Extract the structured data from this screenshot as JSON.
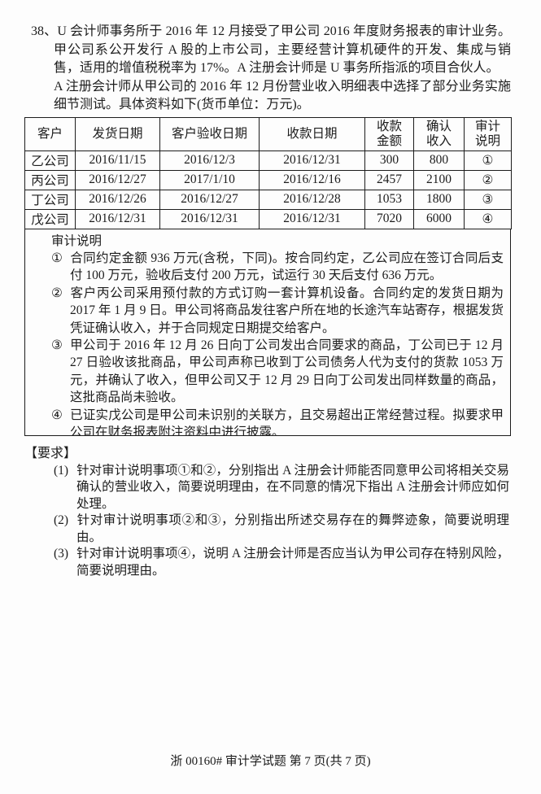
{
  "colors": {
    "ink": "#1c1c1c",
    "background": "#fdfdfd",
    "border": "#1c1c1c"
  },
  "question": {
    "number": "38、",
    "intro": "U 会计师事务所于 2016 年 12 月接受了甲公司 2016 年度财务报表的审计业务。甲公司系公开发行 A 股的上市公司，主要经营计算机硬件的开发、集成与销售，适用的增值税税率为 17%。A 注册会计师是 U 事务所指派的项目合伙人。",
    "intro2": "A 注册会计师从甲公司的 2016 年 12 月份营业收入明细表中选择了部分业务实施细节测试。具体资料如下(货币单位：万元)。"
  },
  "table": {
    "columns": [
      {
        "line1": "客户"
      },
      {
        "line1": "发货日期"
      },
      {
        "line1": "客户验收日期"
      },
      {
        "line1": "收款日期"
      },
      {
        "line1": "收款",
        "line2": "金额"
      },
      {
        "line1": "确认",
        "line2": "收入"
      },
      {
        "line1": "审计",
        "line2": "说明"
      }
    ],
    "rows": [
      {
        "customer": "乙公司",
        "ship_date": "2016/11/15",
        "accept_date": "2016/12/3",
        "receipt_date": "2016/12/31",
        "amount_received": "300",
        "revenue_recognized": "800",
        "note_ref": "①"
      },
      {
        "customer": "丙公司",
        "ship_date": "2016/12/27",
        "accept_date": "2017/1/10",
        "receipt_date": "2016/12/16",
        "amount_received": "2457",
        "revenue_recognized": "2100",
        "note_ref": "②"
      },
      {
        "customer": "丁公司",
        "ship_date": "2016/12/26",
        "accept_date": "2016/12/27",
        "receipt_date": "2016/12/28",
        "amount_received": "1053",
        "revenue_recognized": "1800",
        "note_ref": "③"
      },
      {
        "customer": "戊公司",
        "ship_date": "2016/12/31",
        "accept_date": "2016/12/31",
        "receipt_date": "2016/12/31",
        "amount_received": "7020",
        "revenue_recognized": "6000",
        "note_ref": "④"
      }
    ]
  },
  "notes": {
    "title": "审计说明",
    "items": [
      {
        "marker": "①",
        "text": "合同约定金额 936 万元(含税，下同)。按合同约定，乙公司应在签订合同后支付 100 万元，验收后支付 200 万元，试运行 30 天后支付 636 万元。"
      },
      {
        "marker": "②",
        "text": "客户丙公司采用预付款的方式订购一套计算机设备。合同约定的发货日期为 2017 年 1 月 9 日。甲公司将商品发往客户所在地的长途汽车站寄存，根据发货凭证确认收入，并于合同规定日期提交给客户。"
      },
      {
        "marker": "③",
        "text": "甲公司于 2016 年 12 月 26 日向丁公司发出合同要求的商品，丁公司已于 12 月 27 日验收该批商品，甲公司声称已收到丁公司债务人代为支付的货款 1053 万元，并确认了收入，但甲公司又于 12 月 29 日向丁公司发出同样数量的商品，这批商品尚未验收。"
      },
      {
        "marker": "④",
        "text": "已证实戊公司是甲公司未识别的关联方，且交易超出正常经营过程。拟要求甲公司在财务报表附注资料中进行披露。"
      }
    ]
  },
  "requirements": {
    "title": "【要求】",
    "items": [
      {
        "marker": "(1)",
        "text": "针对审计说明事项①和②，分别指出 A 注册会计师能否同意甲公司将相关交易确认的营业收入，简要说明理由，在不同意的情况下指出 A 注册会计师应如何处理。"
      },
      {
        "marker": "(2)",
        "text": "针对审计说明事项②和③，分别指出所述交易存在的舞弊迹象，简要说明理由。"
      },
      {
        "marker": "(3)",
        "text": "针对审计说明事项④，说明 A 注册会计师是否应当认为甲公司存在特别风险，简要说明理由。"
      }
    ]
  },
  "footer": {
    "text": "浙 00160# 审计学试题 第 7 页(共 7 页)"
  }
}
